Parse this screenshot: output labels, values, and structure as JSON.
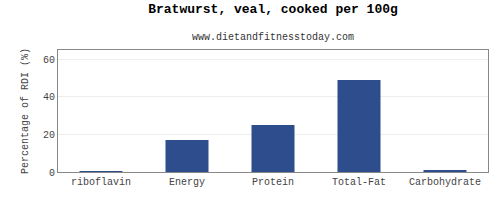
{
  "chart_data": {
    "type": "bar",
    "title": "Bratwurst, veal, cooked per 100g",
    "subtitle": "www.dietandfitnesstoday.com",
    "categories": [
      "riboflavin",
      "Energy",
      "Protein",
      "Total-Fat",
      "Carbohydrate"
    ],
    "values": [
      0.5,
      17,
      25,
      49,
      1
    ],
    "color": "#2e4d8c",
    "ylabel": "Percentage of RDI (%)",
    "ylim": [
      0,
      65
    ],
    "yticks": [
      0,
      20,
      40,
      60
    ],
    "grid": true
  }
}
